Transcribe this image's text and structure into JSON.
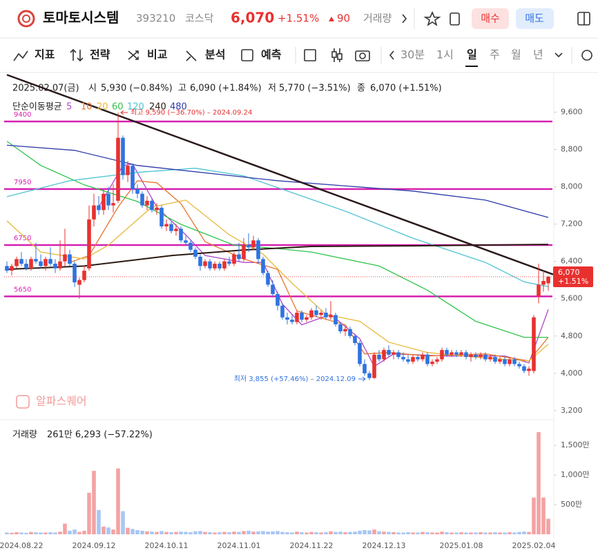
{
  "chart_data": {
    "type": "candlestick",
    "header": {
      "name": "토마토시스템",
      "code": "393210",
      "market": "코스닥",
      "price": "6,070",
      "change_pct": "+1.51%",
      "change": "90",
      "volume_label": "거래량",
      "buy": "매수",
      "sell": "매도"
    },
    "toolbar": [
      "지표",
      "전략",
      "비교",
      "분석",
      "예측"
    ],
    "periods": [
      "30분",
      "1시",
      "일",
      "주",
      "월",
      "년"
    ],
    "info": {
      "date": "2025.02.07(금)",
      "open_label": "시",
      "open": "5,930 (−0.84%)",
      "high_label": "고",
      "high": "6,090 (+1.84%)",
      "low_label": "저",
      "low": "5,770 (−3.51%)",
      "close_label": "종",
      "close": "6,070 (+1.51%)"
    },
    "ma_title": "단순이동평균",
    "watermark": "알파스퀘어",
    "volume_title": "거래량",
    "volume_info": "261만 6,293 (−57.22%)",
    "up_color": "#e8312f",
    "down_color": "#2f73e0",
    "volume_up_color": "#f3a3a3",
    "volume_down_color": "#a8c7f3",
    "level_color": "#d61fb0",
    "trend_color": "#2a1a1a",
    "categories": [
      null,
      null,
      null,
      "2024.08.22",
      null,
      null,
      null,
      null,
      null,
      null,
      null,
      null,
      null,
      null,
      null,
      null,
      null,
      null,
      "2024.09.12",
      null,
      null,
      null,
      null,
      null,
      null,
      null,
      null,
      null,
      null,
      null,
      null,
      null,
      null,
      "2024.10.11",
      null,
      null,
      null,
      null,
      null,
      null,
      null,
      null,
      null,
      null,
      null,
      null,
      null,
      null,
      "2024.11.01",
      null,
      null,
      null,
      null,
      null,
      null,
      null,
      null,
      null,
      null,
      null,
      null,
      null,
      null,
      "2024.11.22",
      null,
      null,
      null,
      null,
      null,
      null,
      null,
      null,
      null,
      null,
      null,
      null,
      null,
      null,
      "2024.12.13",
      null,
      null,
      null,
      null,
      null,
      null,
      null,
      null,
      null,
      null,
      null,
      null,
      null,
      null,
      null,
      "2025.01.08",
      null,
      null,
      null,
      null,
      null,
      null,
      null,
      null,
      null,
      null,
      null,
      null,
      null,
      null,
      "2025.02.04",
      null,
      null,
      null
    ],
    "candles": [
      [
        6300,
        6400,
        6150,
        6200
      ],
      [
        6200,
        6350,
        6100,
        6300
      ],
      [
        6300,
        6500,
        6250,
        6450
      ],
      [
        6450,
        6600,
        6300,
        6350
      ],
      [
        6350,
        6450,
        6200,
        6250
      ],
      [
        6250,
        6500,
        6200,
        6450
      ],
      [
        6450,
        6800,
        6350,
        6400
      ],
      [
        6400,
        6550,
        6250,
        6300
      ],
      [
        6300,
        6500,
        6200,
        6450
      ],
      [
        6450,
        6700,
        6300,
        6350
      ],
      [
        6350,
        6450,
        6150,
        6250
      ],
      [
        6250,
        6850,
        6200,
        6400
      ],
      [
        6400,
        7100,
        6300,
        6550
      ],
      [
        6550,
        6650,
        6300,
        6350
      ],
      [
        6350,
        6400,
        5850,
        5950
      ],
      [
        5900,
        6050,
        5600,
        6000
      ],
      [
        6000,
        6300,
        5950,
        6200
      ],
      [
        6250,
        7600,
        6200,
        7300
      ],
      [
        7300,
        7850,
        7150,
        7600
      ],
      [
        7600,
        7800,
        7400,
        7500
      ],
      [
        7500,
        7950,
        7400,
        7850
      ],
      [
        7850,
        8000,
        7500,
        7600
      ],
      [
        7600,
        8050,
        7450,
        7650
      ],
      [
        7700,
        9590,
        7650,
        9050
      ],
      [
        9050,
        9100,
        8150,
        8250
      ],
      [
        8250,
        8550,
        8100,
        8450
      ],
      [
        8450,
        8500,
        7850,
        7950
      ],
      [
        7950,
        8050,
        7750,
        7850
      ],
      [
        7850,
        7900,
        7550,
        7600
      ],
      [
        7600,
        7800,
        7500,
        7700
      ],
      [
        7700,
        7750,
        7450,
        7500
      ],
      [
        7500,
        7650,
        7400,
        7550
      ],
      [
        7550,
        7600,
        7100,
        7150
      ],
      [
        7150,
        7300,
        7050,
        7200
      ],
      [
        7200,
        7250,
        7000,
        7050
      ],
      [
        7050,
        7200,
        6950,
        7100
      ],
      [
        7100,
        7150,
        6800,
        6850
      ],
      [
        6850,
        6950,
        6750,
        6800
      ],
      [
        6800,
        6850,
        6600,
        6650
      ],
      [
        6650,
        6700,
        6450,
        6500
      ],
      [
        6500,
        6550,
        6200,
        6300
      ],
      [
        6300,
        6450,
        6250,
        6400
      ],
      [
        6400,
        6450,
        6200,
        6250
      ],
      [
        6250,
        6400,
        6200,
        6350
      ],
      [
        6350,
        6400,
        6200,
        6250
      ],
      [
        6250,
        6450,
        6200,
        6400
      ],
      [
        6400,
        6500,
        6300,
        6350
      ],
      [
        6350,
        6600,
        6300,
        6550
      ],
      [
        6550,
        6800,
        6400,
        6450
      ],
      [
        6450,
        6900,
        6400,
        6750
      ],
      [
        6750,
        7000,
        6600,
        6700
      ],
      [
        6700,
        6950,
        6650,
        6850
      ],
      [
        6850,
        6900,
        6350,
        6450
      ],
      [
        6450,
        6500,
        6100,
        6150
      ],
      [
        6150,
        6200,
        5850,
        5900
      ],
      [
        5900,
        6000,
        5650,
        5700
      ],
      [
        5700,
        5750,
        5350,
        5450
      ],
      [
        5450,
        5500,
        5150,
        5200
      ],
      [
        5200,
        5300,
        5050,
        5150
      ],
      [
        5150,
        5250,
        5050,
        5100
      ],
      [
        5100,
        5350,
        5050,
        5300
      ],
      [
        5300,
        5350,
        5100,
        5150
      ],
      [
        5150,
        5250,
        5100,
        5200
      ],
      [
        5200,
        5400,
        5150,
        5350
      ],
      [
        5350,
        5450,
        5200,
        5250
      ],
      [
        5250,
        5350,
        5150,
        5300
      ],
      [
        5300,
        5400,
        5150,
        5200
      ],
      [
        5200,
        5550,
        5150,
        5250
      ],
      [
        5250,
        5300,
        5000,
        5050
      ],
      [
        5050,
        5100,
        4850,
        4900
      ],
      [
        4900,
        5000,
        4800,
        4950
      ],
      [
        4950,
        5000,
        4750,
        4800
      ],
      [
        4800,
        4850,
        4600,
        4650
      ],
      [
        4650,
        4700,
        4150,
        4200
      ],
      [
        4200,
        4300,
        3950,
        4000
      ],
      [
        4000,
        4050,
        3855,
        3900
      ],
      [
        3900,
        4450,
        3880,
        4400
      ],
      [
        4400,
        4500,
        4250,
        4300
      ],
      [
        4300,
        4550,
        4250,
        4500
      ],
      [
        4500,
        4600,
        4350,
        4400
      ],
      [
        4400,
        4500,
        4300,
        4450
      ],
      [
        4450,
        4500,
        4300,
        4350
      ],
      [
        4350,
        4450,
        4250,
        4300
      ],
      [
        4300,
        4400,
        4200,
        4250
      ],
      [
        4250,
        4400,
        4200,
        4350
      ],
      [
        4350,
        4400,
        4250,
        4300
      ],
      [
        4300,
        4450,
        4250,
        4400
      ],
      [
        4400,
        4450,
        4150,
        4200
      ],
      [
        4200,
        4300,
        4150,
        4250
      ],
      [
        4250,
        4350,
        4200,
        4300
      ],
      [
        4300,
        4550,
        4250,
        4500
      ],
      [
        4500,
        4550,
        4350,
        4400
      ],
      [
        4400,
        4500,
        4350,
        4450
      ],
      [
        4450,
        4500,
        4350,
        4400
      ],
      [
        4400,
        4500,
        4350,
        4450
      ],
      [
        4450,
        4500,
        4300,
        4350
      ],
      [
        4350,
        4450,
        4250,
        4400
      ],
      [
        4400,
        4450,
        4300,
        4350
      ],
      [
        4350,
        4450,
        4300,
        4400
      ],
      [
        4400,
        4450,
        4250,
        4300
      ],
      [
        4300,
        4400,
        4250,
        4350
      ],
      [
        4350,
        4400,
        4200,
        4250
      ],
      [
        4250,
        4350,
        4200,
        4300
      ],
      [
        4300,
        4350,
        4150,
        4200
      ],
      [
        4200,
        4350,
        4150,
        4300
      ],
      [
        4300,
        4350,
        4150,
        4200
      ],
      [
        4200,
        4250,
        4100,
        4150
      ],
      [
        4150,
        4200,
        4000,
        4050
      ],
      [
        4050,
        4150,
        3950,
        4100
      ],
      [
        4050,
        5250,
        4000,
        5200
      ],
      [
        5650,
        6350,
        5500,
        5900
      ],
      [
        5900,
        6200,
        5750,
        5980
      ],
      [
        5930,
        6090,
        5770,
        6070
      ]
    ],
    "volume": [
      30,
      25,
      35,
      30,
      25,
      40,
      35,
      30,
      30,
      35,
      30,
      45,
      180,
      60,
      80,
      40,
      60,
      700,
      1070,
      410,
      130,
      115,
      80,
      1110,
      390,
      110,
      90,
      70,
      60,
      50,
      45,
      40,
      55,
      40,
      35,
      40,
      45,
      40,
      35,
      50,
      55,
      40,
      35,
      30,
      35,
      40,
      35,
      45,
      40,
      55,
      60,
      45,
      50,
      55,
      45,
      50,
      55,
      40,
      35,
      30,
      45,
      35,
      30,
      40,
      35,
      30,
      35,
      50,
      40,
      45,
      35,
      40,
      45,
      60,
      70,
      65,
      80,
      50,
      45,
      40,
      35,
      30,
      30,
      35,
      30,
      30,
      40,
      35,
      30,
      30,
      45,
      35,
      30,
      30,
      35,
      30,
      30,
      30,
      35,
      30,
      30,
      35,
      30,
      30,
      35,
      30,
      40,
      45,
      40,
      620,
      1724,
      620,
      261.6293
    ],
    "ylim": [
      3050,
      10450
    ],
    "yticks": [
      {
        "value": 3200,
        "label": "3,200"
      },
      {
        "value": 4000,
        "label": "4,000"
      },
      {
        "value": 4800,
        "label": "4,800"
      },
      {
        "value": 5600,
        "label": "5,600"
      },
      {
        "value": 6400,
        "label": "6,400"
      },
      {
        "value": 7200,
        "label": "7,200"
      },
      {
        "value": 8000,
        "label": "8,000"
      },
      {
        "value": 8800,
        "label": "8,800"
      },
      {
        "value": 9600,
        "label": "9,600"
      }
    ],
    "volume_ylim": [
      0,
      1840
    ],
    "volume_yticks": [
      {
        "value": 500,
        "label": "500만"
      },
      {
        "value": 1000,
        "label": "1,000만"
      },
      {
        "value": 1500,
        "label": "1,500만"
      }
    ],
    "levels": [
      9400,
      7950,
      6750,
      5650
    ],
    "trendline": {
      "x": [
        0,
        113
      ],
      "values": [
        10400,
        6120
      ]
    },
    "series": [
      {
        "name": "5",
        "color": "#b044c9",
        "x": [
          19,
          24,
          26,
          31,
          37,
          41,
          49,
          53,
          57,
          61,
          67,
          73,
          76,
          80,
          91,
          103,
          108,
          112
        ],
        "values": [
          7565,
          8456,
          8486,
          7565,
          6971,
          6525,
          6377,
          6377,
          5485,
          5040,
          5263,
          4742,
          4148,
          4416,
          4371,
          4371,
          4223,
          5367
        ]
      },
      {
        "name": "10",
        "color": "#e8732a",
        "x": [
          13,
          17,
          23,
          27,
          31,
          36,
          41,
          49,
          56,
          60,
          66,
          70,
          74,
          79,
          87,
          99,
          108,
          112
        ],
        "values": [
          6377,
          6525,
          7565,
          8130,
          8085,
          7639,
          6822,
          6451,
          6228,
          5337,
          5159,
          5040,
          4416,
          4446,
          4371,
          4416,
          4267,
          4772
        ]
      },
      {
        "name": "20",
        "color": "#e6b83a",
        "x": [
          0,
          7,
          16,
          21,
          30,
          37,
          46,
          53,
          59,
          66,
          73,
          79,
          87,
          99,
          108,
          112
        ],
        "values": [
          7268,
          6600,
          6451,
          6748,
          7565,
          7714,
          6971,
          6555,
          5931,
          5263,
          5114,
          4668,
          4446,
          4327,
          4267,
          4624
        ]
      },
      {
        "name": "60",
        "color": "#2ec44a",
        "x": [
          0,
          7,
          16,
          27,
          36,
          47,
          56,
          63,
          77,
          87,
          97,
          107,
          112
        ],
        "values": [
          8976,
          8456,
          8040,
          7684,
          7194,
          6748,
          6674,
          6600,
          6302,
          5782,
          5114,
          4772,
          4772
        ]
      },
      {
        "name": "120",
        "color": "#4dc3d2",
        "x": [
          0,
          13,
          27,
          39,
          49,
          56,
          70,
          84,
          99,
          107,
          112
        ],
        "values": [
          7788,
          8130,
          8308,
          8397,
          8233,
          7981,
          7476,
          6896,
          6377,
          5961,
          5857
        ]
      },
      {
        "name": "240",
        "color": "#2a1a10",
        "x": [
          0,
          16,
          34,
          49,
          63,
          84,
          112
        ],
        "values": [
          6230,
          6300,
          6525,
          6645,
          6720,
          6733,
          6763
        ]
      },
      {
        "name": "480",
        "color": "#2c3aa8",
        "x": [
          0,
          14,
          27,
          56,
          84,
          99,
          112
        ],
        "values": [
          8890,
          8780,
          8456,
          8130,
          7907,
          7713,
          7342
        ]
      }
    ],
    "max_annotation": "최고 9,590 (−36.70%) – 2024.09.24",
    "min_annotation": "최저 3,855 (+57.46%) – 2024.12.09",
    "price_tag": {
      "price": "6,070",
      "change": "+1.51%"
    },
    "last_price": 6070,
    "grid": false
  }
}
